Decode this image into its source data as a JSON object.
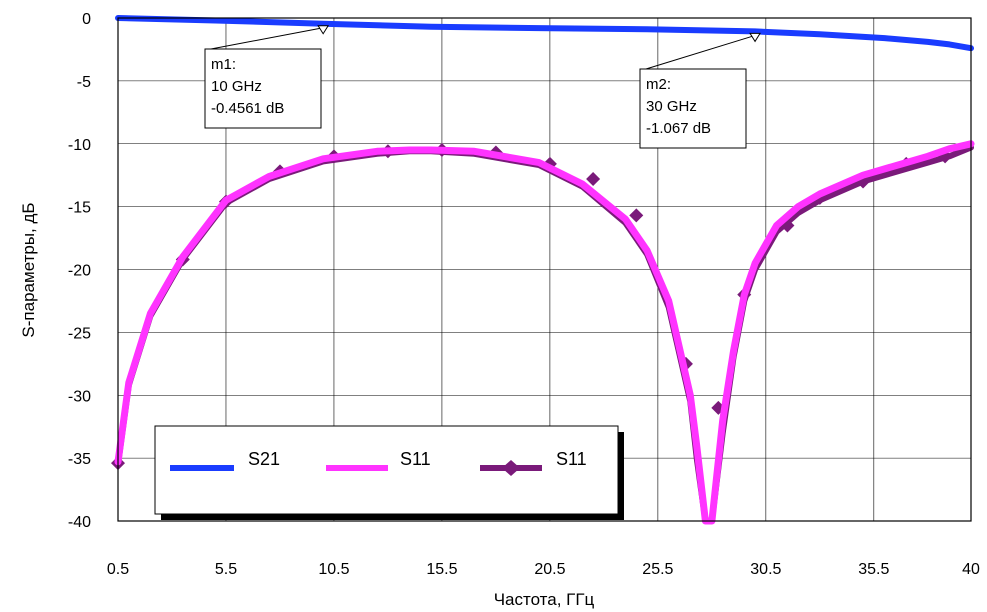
{
  "chart_data": {
    "type": "line",
    "xlabel": "Частота, ГГц",
    "ylabel": "S-параметры, дБ",
    "xlim": [
      0.5,
      40
    ],
    "ylim": [
      -40,
      0
    ],
    "x_ticks": [
      "0.5",
      "5.5",
      "10.5",
      "15.5",
      "20.5",
      "25.5",
      "30.5",
      "35.5",
      "40"
    ],
    "y_ticks": [
      "0",
      "-5",
      "-10",
      "-15",
      "-20",
      "-25",
      "-30",
      "-35",
      "-40"
    ],
    "grid": true,
    "legend_position": "bottom-left",
    "series": [
      {
        "name": "S21",
        "color": "#1a3cff",
        "marker": "none",
        "x": [
          0.5,
          5,
          10,
          15,
          20,
          25,
          30,
          33,
          36,
          38,
          39,
          40
        ],
        "y": [
          0.0,
          -0.2,
          -0.4561,
          -0.7,
          -0.8,
          -0.9,
          -1.067,
          -1.3,
          -1.6,
          -1.9,
          -2.1,
          -2.4
        ]
      },
      {
        "name": "S11",
        "color": "#ff33ff",
        "marker": "none",
        "x": [
          0.5,
          1,
          2,
          3.5,
          5.5,
          7.5,
          10,
          12.5,
          14,
          15,
          17,
          20,
          22,
          24,
          25,
          26,
          27,
          27.3,
          27.7,
          28,
          28.5,
          29,
          29.5,
          30,
          31,
          32,
          33,
          35,
          37,
          38,
          39,
          40
        ],
        "y": [
          -35.3,
          -29,
          -23.5,
          -19,
          -14.5,
          -12.6,
          -11.2,
          -10.6,
          -10.5,
          -10.5,
          -10.6,
          -11.5,
          -13.2,
          -16,
          -18.5,
          -22.5,
          -30,
          -34,
          -40,
          -40,
          -32,
          -26.5,
          -22,
          -19.5,
          -16.5,
          -15,
          -14,
          -12.5,
          -11.5,
          -11,
          -10.4,
          -10
        ]
      },
      {
        "name": "S11",
        "color": "#7a1a7a",
        "marker": "diamond",
        "x": [
          0.5,
          1,
          2,
          3.5,
          5.5,
          7.5,
          10,
          12.5,
          14,
          15,
          17,
          20,
          22,
          24,
          25,
          26,
          27,
          27.3,
          27.7,
          28,
          28.5,
          29,
          29.5,
          30,
          31,
          32,
          33,
          35,
          37,
          38,
          39,
          40
        ],
        "y": [
          -35.5,
          -29.2,
          -23.7,
          -19.2,
          -14.7,
          -12.8,
          -11.4,
          -10.8,
          -10.6,
          -10.6,
          -10.8,
          -11.7,
          -13.4,
          -16.3,
          -18.8,
          -23,
          -30.5,
          -35,
          -40,
          -40,
          -33,
          -27,
          -22.5,
          -20,
          -17,
          -15.5,
          -14.5,
          -13,
          -12,
          -11.5,
          -11,
          -10.3
        ],
        "marker_x": [
          0.5,
          3.5,
          5.5,
          8,
          10.5,
          13,
          15.5,
          18,
          20.5,
          22.5,
          24.5,
          26.8,
          28.3,
          29.5,
          31.5,
          33,
          35,
          37,
          38.8
        ],
        "marker_y": [
          -35.4,
          -19.2,
          -14.6,
          -12.2,
          -11.0,
          -10.6,
          -10.5,
          -10.7,
          -11.6,
          -12.8,
          -15.7,
          -27.5,
          -31,
          -22,
          -16.5,
          -14.3,
          -13,
          -11.6,
          -11
        ]
      }
    ],
    "markers": [
      {
        "label": "m1:",
        "freq": "10 GHz",
        "value": "-0.4561 dB",
        "x": 10,
        "y": -0.4561
      },
      {
        "label": "m2:",
        "freq": "30 GHz",
        "value": "-1.067 dB",
        "x": 30,
        "y": -1.067
      }
    ]
  }
}
